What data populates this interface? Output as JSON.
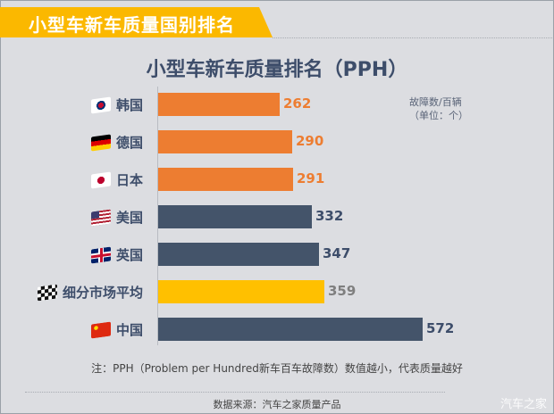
{
  "banner": {
    "title": "小型车新车质量国别排名"
  },
  "chart_data": {
    "type": "bar",
    "orientation": "horizontal",
    "title": "小型车新车质量排名（PPH）",
    "unit_label": [
      "故障数/百辆",
      "（单位：个）"
    ],
    "categories": [
      "韩国",
      "德国",
      "日本",
      "美国",
      "英国",
      "细分市场平均",
      "中国"
    ],
    "values": [
      262,
      290,
      291,
      332,
      347,
      359,
      572
    ],
    "bar_colors": [
      "#ed7d31",
      "#ed7d31",
      "#ed7d31",
      "#44546a",
      "#44546a",
      "#ffc000",
      "#44546a"
    ],
    "value_colors": [
      "#ed7d31",
      "#ed7d31",
      "#ed7d31",
      "#3d4d6a",
      "#3d4d6a",
      "#7f7f7f",
      "#3d4d6a"
    ],
    "flags": [
      "korea-flag-icon",
      "germany-flag-icon",
      "japan-flag-icon",
      "usa-flag-icon",
      "uk-flag-icon",
      "checkered-flag-icon",
      "china-flag-icon"
    ],
    "xlim": [
      0,
      600
    ],
    "grid": false,
    "legend": null
  },
  "footer": {
    "note": "注：PPH（Problem per Hundred新车百车故障数）数值越小，代表质量越好",
    "source": "数据来源：汽车之家质量产品",
    "watermark": "汽车之家"
  }
}
